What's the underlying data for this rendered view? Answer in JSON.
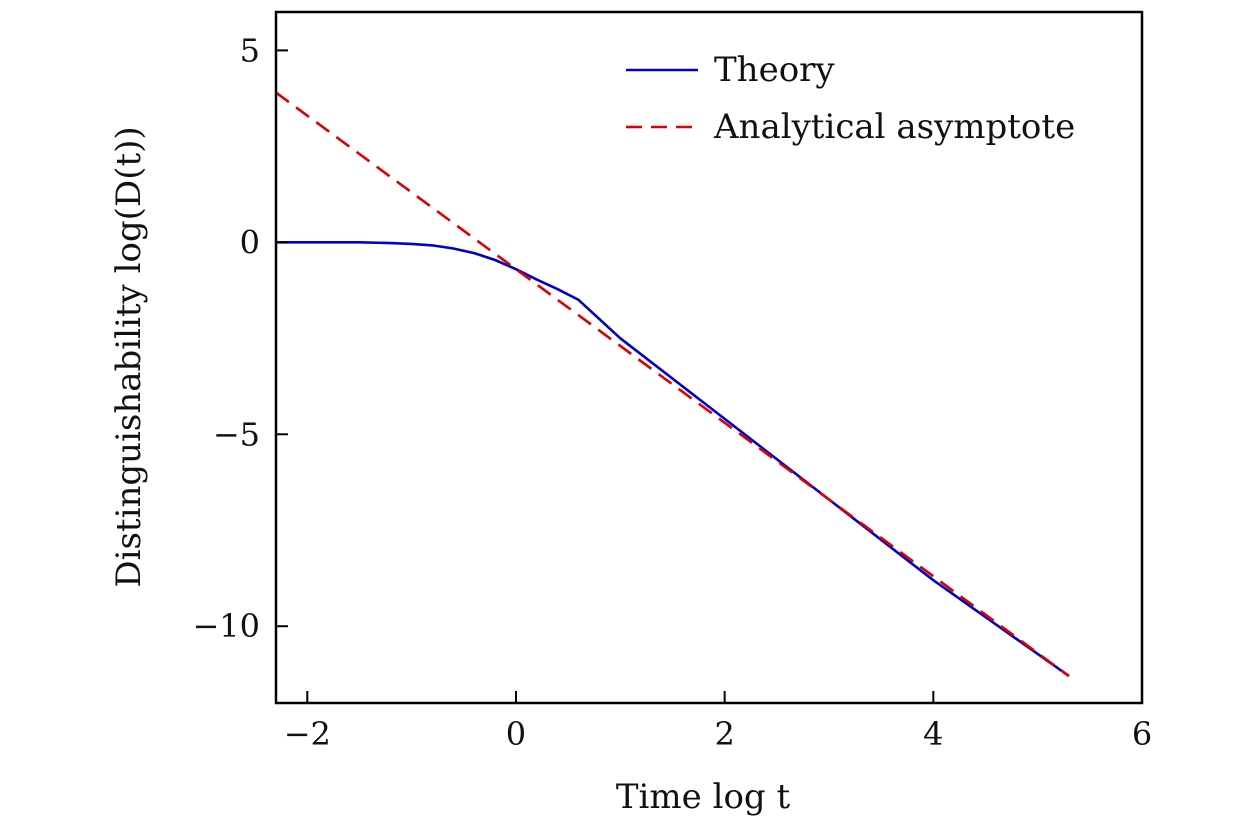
{
  "chart_data": {
    "type": "line",
    "xlabel": "Time log t",
    "ylabel": "Distinguishability log(D(t))",
    "xlim": [
      -2.3,
      6
    ],
    "ylim": [
      -12,
      6
    ],
    "xticks": [
      -2,
      0,
      2,
      4,
      6
    ],
    "xtick_labels": [
      "−2",
      "0",
      "2",
      "4",
      "6"
    ],
    "yticks": [
      5,
      0,
      -5,
      -10
    ],
    "ytick_labels": [
      "5",
      "0",
      "−5",
      "−10"
    ],
    "grid": false,
    "legend_position": "top-right",
    "series": [
      {
        "name": "Theory",
        "color": "#0000cc",
        "style": "solid",
        "x": [
          -2.3,
          -2.0,
          -1.5,
          -1.2,
          -1.0,
          -0.8,
          -0.6,
          -0.4,
          -0.2,
          0.0,
          0.2,
          0.4,
          0.6,
          1.0,
          2.0,
          3.0,
          4.0,
          5.3
        ],
        "y": [
          0.0,
          0.0,
          0.0,
          -0.02,
          -0.04,
          -0.08,
          -0.16,
          -0.28,
          -0.46,
          -0.7,
          -0.97,
          -1.22,
          -1.5,
          -2.5,
          -4.6,
          -6.7,
          -8.8,
          -11.3
        ]
      },
      {
        "name": "Analytical asymptote",
        "color": "#dd0000",
        "style": "dashed",
        "x": [
          -2.3,
          5.3
        ],
        "y": [
          3.9,
          -11.3
        ]
      }
    ]
  }
}
